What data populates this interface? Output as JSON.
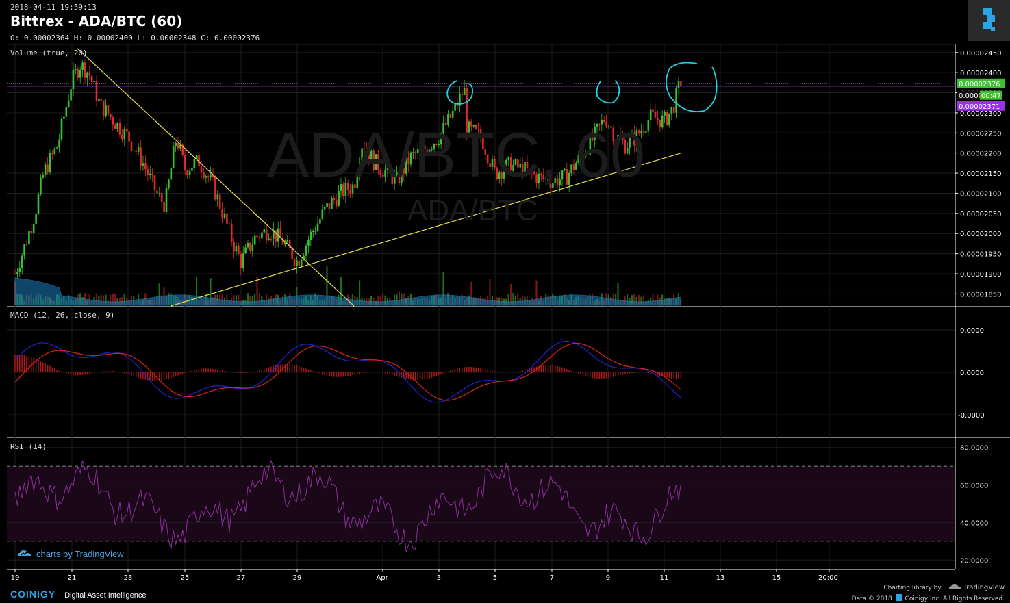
{
  "header": {
    "timestamp": "2018-04-11 19:59:13",
    "title": "Bittrex - ADA/BTC (60)",
    "ohlc": "O: 0.00002364 H: 0.00002400 L: 0.00002348 C: 0.00002376"
  },
  "watermark": {
    "big": "ADA/BTC, 60",
    "small": "ADA/BTC"
  },
  "panes": {
    "volume_label": "Volume (true, 20)",
    "macd_label": "MACD (12, 26, close, 9)",
    "rsi_label": "RSI (14)"
  },
  "price_tags": {
    "last": "0.00002376",
    "countdown": "00:47",
    "partial": "0.0000",
    "purple": "0.00002371"
  },
  "footer": {
    "brand": "COINIGY",
    "tagline": "Digital Asset Intelligence",
    "tv_credit": "charts by TradingView",
    "charting_library": "Charting library by",
    "tradingview": "TradingView",
    "data_credit": "Data © 2018",
    "coinigy_credit": "Coinigy Inc. All Rights Reserved."
  },
  "colors": {
    "up": "#39c12f",
    "down": "#e02a2a",
    "trendline": "#e8e14a",
    "annotation": "#22d3e6",
    "purple_line": "#9b2ff0",
    "volume_area": "#1c7fbf",
    "macd_line": "#2222dd",
    "signal_line": "#dd2222",
    "rsi_line": "#8a2f9a",
    "rsi_band": "#1a0818"
  },
  "chart_data": {
    "type": "candlestick",
    "price_axis": {
      "ylim": [
        1.82e-05,
        2.47e-05
      ],
      "ticks": [
        "0.00002450",
        "0.00002400",
        "0.00002350",
        "0.00002300",
        "0.00002250",
        "0.00002200",
        "0.00002150",
        "0.00002100",
        "0.00002050",
        "0.00002000",
        "0.00001950",
        "0.00001900",
        "0.00001850"
      ]
    },
    "x_axis": {
      "ticks": [
        "19",
        "21",
        "23",
        "25",
        "27",
        "29",
        "Apr",
        "3",
        "5",
        "7",
        "9",
        "11",
        "13",
        "15",
        "20:00"
      ]
    },
    "macd_axis": {
      "ticks": [
        "0.0000",
        "0.0000",
        "-0.0000"
      ]
    },
    "rsi_axis": {
      "ticks": [
        "80.0000",
        "60.0000",
        "40.0000",
        "20.0000"
      ],
      "bands": [
        30,
        70
      ]
    },
    "price_path": [
      [
        "19",
        1.9e-05
      ],
      [
        "19.3",
        1.96e-05
      ],
      [
        "19.7",
        2.05e-05
      ],
      [
        "20",
        2.15e-05
      ],
      [
        "20.5",
        2.22e-05
      ],
      [
        "21",
        2.38e-05
      ],
      [
        "21.3",
        2.42e-05
      ],
      [
        "21.6",
        2.4e-05
      ],
      [
        "22",
        2.32e-05
      ],
      [
        "22.5",
        2.28e-05
      ],
      [
        "23",
        2.24e-05
      ],
      [
        "23.5",
        2.18e-05
      ],
      [
        "24",
        2.1e-05
      ],
      [
        "24.3",
        2.07e-05
      ],
      [
        "24.7",
        2.24e-05
      ],
      [
        "25",
        2.16e-05
      ],
      [
        "25.5",
        2.18e-05
      ],
      [
        "26",
        2.12e-05
      ],
      [
        "26.3",
        2.06e-05
      ],
      [
        "26.7",
        1.98e-05
      ],
      [
        "27",
        1.93e-05
      ],
      [
        "27.5",
        1.99e-05
      ],
      [
        "28",
        2.01e-05
      ],
      [
        "28.5",
        1.98e-05
      ],
      [
        "29",
        1.93e-05
      ],
      [
        "29.5",
        2e-05
      ],
      [
        "30",
        2.06e-05
      ],
      [
        "30.5",
        2.1e-05
      ],
      [
        "31",
        2.12e-05
      ],
      [
        "31.3",
        2.23e-05
      ],
      [
        "31.7",
        2.18e-05
      ],
      [
        "Apr",
        2.16e-05
      ],
      [
        "1.5",
        2.13e-05
      ],
      [
        "2",
        2.19e-05
      ],
      [
        "2.5",
        2.21e-05
      ],
      [
        "3",
        2.24e-05
      ],
      [
        "3.5",
        2.3e-05
      ],
      [
        "3.9",
        2.36e-05
      ],
      [
        "4",
        2.26e-05
      ],
      [
        "4.5",
        2.24e-05
      ],
      [
        "5",
        2.15e-05
      ],
      [
        "5.5",
        2.17e-05
      ],
      [
        "6",
        2.16e-05
      ],
      [
        "6.5",
        2.14e-05
      ],
      [
        "7",
        2.13e-05
      ],
      [
        "7.5",
        2.14e-05
      ],
      [
        "8",
        2.19e-05
      ],
      [
        "8.5",
        2.24e-05
      ],
      [
        "8.9",
        2.29e-05
      ],
      [
        "9.2",
        2.25e-05
      ],
      [
        "9.6",
        2.22e-05
      ],
      [
        "10",
        2.24e-05
      ],
      [
        "10.5",
        2.29e-05
      ],
      [
        "11",
        2.28e-05
      ],
      [
        "11.3",
        2.31e-05
      ],
      [
        "11.6",
        2.38e-05
      ]
    ],
    "trendlines": [
      {
        "name": "descending",
        "from": [
          "21.2",
          2.46e-05
        ],
        "to": [
          "31",
          1.82e-05
        ]
      },
      {
        "name": "ascending",
        "from": [
          "24.5",
          1.82e-05
        ],
        "to": [
          "11.6",
          2.2e-05
        ]
      }
    ],
    "horizontal_line": 2.37e-05
  }
}
